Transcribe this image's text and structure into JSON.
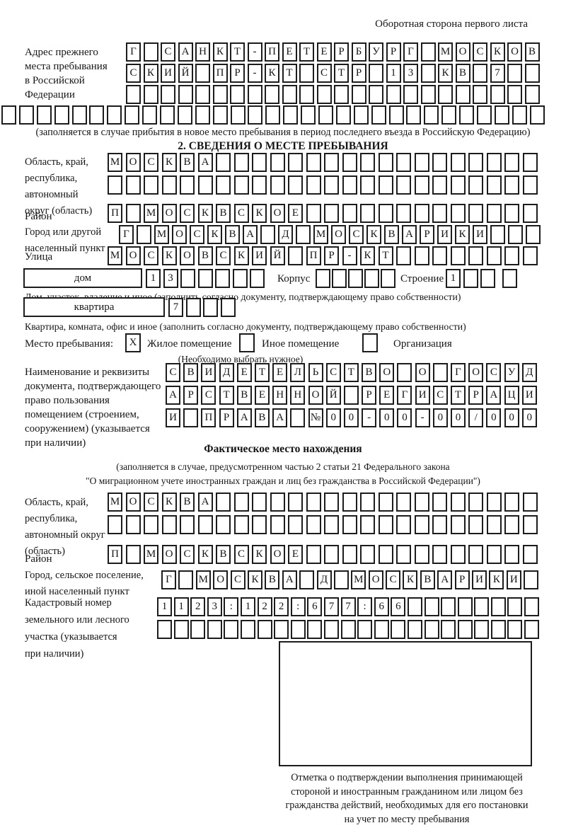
{
  "page_title": "Оборотная сторона первого листа",
  "prev_address": {
    "label_lines": [
      "Адрес прежнего",
      "места пребывания",
      "в Российской",
      "Федерации"
    ],
    "row1": [
      "Г",
      "",
      "С",
      "А",
      "Н",
      "К",
      "Т",
      "-",
      "П",
      "Е",
      "Т",
      "Е",
      "Р",
      "Б",
      "У",
      "Р",
      "Г",
      "",
      "М",
      "О",
      "С",
      "К",
      "О",
      "В"
    ],
    "row2": [
      "С",
      "К",
      "И",
      "Й",
      "",
      "П",
      "Р",
      "-",
      "К",
      "Т",
      "",
      "С",
      "Т",
      "Р",
      "",
      "1",
      "3",
      "",
      "К",
      "В",
      "",
      "7",
      "",
      ""
    ],
    "row3_blanks": 24,
    "row4_blanks": 31,
    "note": "(заполняется в случае прибытия в новое место пребывания в период последнего въезда в Российскую Федерацию)"
  },
  "section2": {
    "title": "2. СВЕДЕНИЯ О МЕСТЕ ПРЕБЫВАНИЯ",
    "region_label_lines": [
      "Область, край,",
      "республика,",
      "автономный",
      "округ (область)"
    ],
    "region_row1": [
      "М",
      "О",
      "С",
      "К",
      "В",
      "А",
      "",
      "",
      "",
      "",
      "",
      "",
      "",
      "",
      "",
      "",
      "",
      "",
      "",
      "",
      "",
      "",
      "",
      ""
    ],
    "region_row2_blanks": 24,
    "district_label": "Район",
    "district_row": [
      "П",
      "",
      "М",
      "О",
      "С",
      "К",
      "В",
      "С",
      "К",
      "О",
      "Е",
      "",
      "",
      "",
      "",
      "",
      "",
      "",
      "",
      "",
      "",
      "",
      "",
      ""
    ],
    "city_label_lines": [
      "Город или другой",
      "населенный пункт"
    ],
    "city_row": [
      "Г",
      "",
      "М",
      "О",
      "С",
      "К",
      "В",
      "А",
      "",
      "Д",
      "",
      "М",
      "О",
      "С",
      "К",
      "В",
      "А",
      "Р",
      "И",
      "К",
      "И",
      "",
      "",
      ""
    ],
    "street_label": "Улица",
    "street_row": [
      "М",
      "О",
      "С",
      "К",
      "О",
      "В",
      "С",
      "К",
      "И",
      "Й",
      "",
      "П",
      "Р",
      "-",
      "К",
      "Т",
      "",
      "",
      "",
      "",
      "",
      "",
      "",
      ""
    ],
    "house_box_label": "дом",
    "house_row": [
      "1",
      "3",
      "",
      "",
      "",
      "",
      ""
    ],
    "korpus_label": "Корпус",
    "korpus_blanks": 5,
    "stroenie_label": "Строение",
    "stroenie_row": [
      "1",
      "",
      "",
      ""
    ],
    "house_caption": "Дом, участок, владение и иное (заполнить согласно документу, подтверждающему право собственности)",
    "apartment_box_label": "квартира",
    "apartment_row": [
      "7",
      "",
      "",
      ""
    ],
    "apartment_caption": "Квартира, комната, офис и иное (заполнить согласно документу, подтверждающему право собственности)",
    "stay": {
      "label": "Место пребывания:",
      "opt1_mark": "X",
      "opt1_label": "Жилое помещение",
      "opt2_mark": "",
      "opt2_label": "Иное помещение",
      "opt3_mark": "",
      "opt3_label": "Организация",
      "note": "(Необходимо выбрать нужное)"
    },
    "doc_label_lines": [
      "Наименование и реквизиты",
      "документа, подтверждающего",
      "право пользования",
      "помещением (строением,",
      "сооружением) (указывается",
      "при наличии)"
    ],
    "doc_row1": [
      "С",
      "В",
      "И",
      "Д",
      "Е",
      "Т",
      "Е",
      "Л",
      "Ь",
      "С",
      "Т",
      "В",
      "О",
      "",
      "О",
      "",
      "Г",
      "О",
      "С",
      "У",
      "Д"
    ],
    "doc_row2": [
      "А",
      "Р",
      "С",
      "Т",
      "В",
      "Е",
      "Н",
      "Н",
      "О",
      "Й",
      "",
      "Р",
      "Е",
      "Г",
      "И",
      "С",
      "Т",
      "Р",
      "А",
      "Ц",
      "И"
    ],
    "doc_row3": [
      "И",
      "",
      "П",
      "Р",
      "А",
      "В",
      "А",
      "",
      "№",
      "0",
      "0",
      "-",
      "0",
      "0",
      "-",
      "0",
      "0",
      "/",
      "0",
      "0",
      "0"
    ]
  },
  "actual_location": {
    "title": "Фактическое место нахождения",
    "note_line1": "(заполняется в случае, предусмотренном частью 2 статьи 21 Федерального закона",
    "note_line2": "\"О миграционном учете иностранных граждан и лиц без гражданства в Российской Федерации\")",
    "region_label_lines": [
      "Область, край,",
      "республика,",
      "автономный округ",
      "(область)"
    ],
    "region_row1": [
      "М",
      "О",
      "С",
      "К",
      "В",
      "А",
      "",
      "",
      "",
      "",
      "",
      "",
      "",
      "",
      "",
      "",
      "",
      "",
      "",
      "",
      "",
      "",
      "",
      ""
    ],
    "region_row2_blanks": 24,
    "district_label": "Район",
    "district_row": [
      "П",
      "",
      "М",
      "О",
      "С",
      "К",
      "В",
      "С",
      "К",
      "О",
      "Е",
      "",
      "",
      "",
      "",
      "",
      "",
      "",
      "",
      "",
      "",
      "",
      "",
      ""
    ],
    "city_label_lines": [
      "Город, сельское поселение,",
      "иной населенный пункт"
    ],
    "city_row": [
      "Г",
      "",
      "М",
      "О",
      "С",
      "К",
      "В",
      "А",
      "",
      "Д",
      "",
      "М",
      "О",
      "С",
      "К",
      "В",
      "А",
      "Р",
      "И",
      "К",
      "И",
      ""
    ],
    "cadastral_label_lines": [
      "Кадастровый номер",
      "земельного или лесного",
      "участка (указывается",
      "при наличии)"
    ],
    "cadastral_row1": [
      "1",
      "1",
      "2",
      "3",
      ":",
      "1",
      "2",
      "2",
      ":",
      "6",
      "7",
      "7",
      ":",
      "6",
      "6",
      "",
      "",
      "",
      "",
      "",
      "",
      "",
      ""
    ],
    "cadastral_row2_blanks": 23,
    "stamp_caption_lines": [
      "Отметка о подтверждении выполнения принимающей",
      "стороной и иностранным гражданином или лицом без",
      "гражданства действий, необходимых для его постановки",
      "на учет по месту пребывания"
    ]
  }
}
